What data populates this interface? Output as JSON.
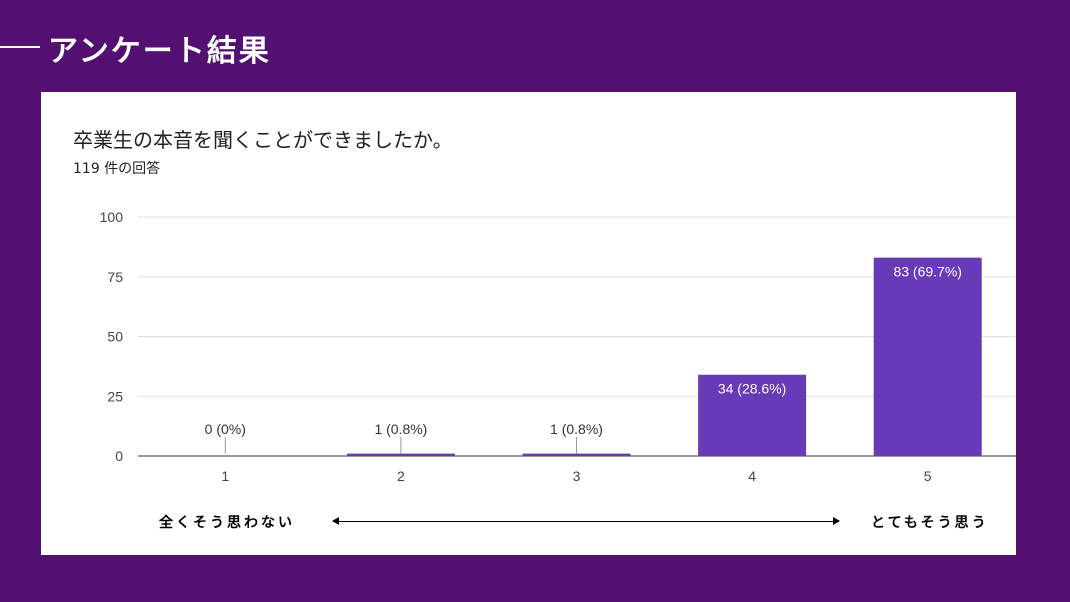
{
  "slide": {
    "title": "アンケート結果"
  },
  "card": {
    "question": "卒業生の本音を聞くことができましたか。",
    "response_count": "119 件の回答"
  },
  "scale": {
    "left_label": "全くそう思わない",
    "right_label": "とてもそう思う"
  },
  "colors": {
    "background": "#541070",
    "bar": "#673ab7",
    "grid": "#e0e0e0"
  },
  "chart_data": {
    "type": "bar",
    "categories": [
      "1",
      "2",
      "3",
      "4",
      "5"
    ],
    "values": [
      0,
      1,
      1,
      34,
      83
    ],
    "data_labels": [
      "0 (0%)",
      "1 (0.8%)",
      "1 (0.8%)",
      "34 (28.6%)",
      "83 (69.7%)"
    ],
    "yticks": [
      0,
      25,
      50,
      75,
      100
    ],
    "ylim": [
      0,
      100
    ],
    "grid": true,
    "title": "",
    "xlabel": "",
    "ylabel": ""
  }
}
